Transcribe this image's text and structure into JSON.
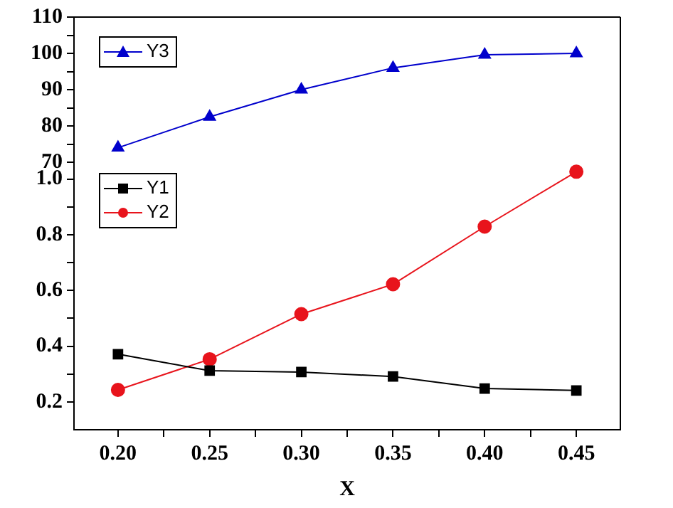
{
  "chart_data": [
    {
      "type": "line",
      "x": [
        0.2,
        0.25,
        0.3,
        0.35,
        0.4,
        0.45
      ],
      "series": [
        {
          "name": "Y3",
          "color": "#0000cc",
          "marker": "triangle",
          "values": [
            74,
            82.5,
            90,
            96,
            99.6,
            100
          ]
        }
      ],
      "xlim": [
        0.176,
        0.474
      ],
      "ylim": [
        70,
        110
      ],
      "yticks": [
        70,
        {
          "value": 75,
          "label": null
        },
        80,
        {
          "value": 85,
          "label": null
        },
        90,
        {
          "value": 95,
          "label": null
        },
        100,
        {
          "value": 105,
          "label": null
        },
        110
      ],
      "tick_labels": "y",
      "grid": false,
      "legend": "top left",
      "line_style": "solid"
    },
    {
      "type": "line",
      "xlabel": "X",
      "x": [
        0.2,
        0.25,
        0.3,
        0.35,
        0.4,
        0.45
      ],
      "series": [
        {
          "name": "Y1",
          "color": "#000000",
          "marker": "square",
          "values": [
            0.371,
            0.312,
            0.307,
            0.291,
            0.248,
            0.241
          ]
        },
        {
          "name": "Y2",
          "color": "#e8141c",
          "marker": "circle",
          "values": [
            0.243,
            0.353,
            0.515,
            0.622,
            0.829,
            1.026
          ]
        }
      ],
      "xlim": [
        0.176,
        0.474
      ],
      "xticks": [
        {
          "value": 0.2,
          "label": "0.20"
        },
        {
          "value": 0.225,
          "label": null
        },
        {
          "value": 0.25,
          "label": "0.25"
        },
        {
          "value": 0.275,
          "label": null
        },
        {
          "value": 0.3,
          "label": "0.30"
        },
        {
          "value": 0.325,
          "label": null
        },
        {
          "value": 0.35,
          "label": "0.35"
        },
        {
          "value": 0.375,
          "label": null
        },
        {
          "value": 0.4,
          "label": "0.40"
        },
        {
          "value": 0.425,
          "label": null
        },
        {
          "value": 0.45,
          "label": "0.45"
        }
      ],
      "ylim": [
        0.1,
        1.06
      ],
      "yticks": [
        0.2,
        {
          "value": 0.3,
          "label": null
        },
        0.4,
        {
          "value": 0.5,
          "label": null
        },
        0.6,
        {
          "value": 0.7,
          "label": null
        },
        0.8,
        {
          "value": 0.9,
          "label": null
        },
        {
          "value": 1,
          "label": "1.0"
        }
      ],
      "grid": false,
      "legend": "top left",
      "line_style": "solid"
    }
  ]
}
